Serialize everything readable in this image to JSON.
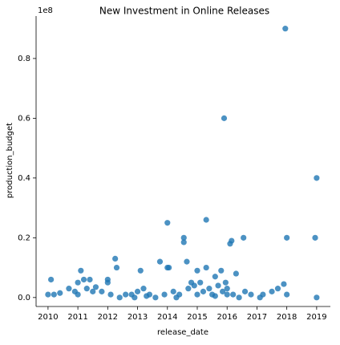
{
  "chart_data": {
    "type": "scatter",
    "title": "New Investment in Online Releases",
    "x_label": "release_date",
    "y_label": "production_budget",
    "y_offset_label": "1e8",
    "color": "#1f77b4",
    "xlim": [
      2009.6,
      2019.46
    ],
    "ylim": [
      -0.03,
      0.942
    ],
    "xticks": [
      2010,
      2011,
      2012,
      2013,
      2014,
      2015,
      2016,
      2017,
      2018,
      2019
    ],
    "yticks": [
      {
        "value": 0,
        "label": "0.0"
      },
      {
        "value": 0.2,
        "label": "0.2"
      },
      {
        "value": 0.4,
        "label": "0.4"
      },
      {
        "value": 0.6,
        "label": "0.6"
      },
      {
        "value": 0.8,
        "label": "0.8"
      }
    ],
    "x": [
      2017.95,
      2015.9,
      2019.0,
      2014.0,
      2015.3,
      2014.55,
      2014.55,
      2016.15,
      2016.1,
      2016.55,
      2018.0,
      2018.95,
      2012.25,
      2012.3,
      2013.75,
      2014.0,
      2014.05,
      2011.1,
      2013.1,
      2014.65,
      2015.3,
      2015.0,
      2015.8,
      2015.6,
      2016.3,
      2010.1,
      2011.0,
      2011.2,
      2011.4,
      2012.0,
      2012.0,
      2017.9,
      2017.7,
      2017.5,
      2017.2,
      2016.8,
      2019.0,
      2017.1,
      2018.0,
      2010.0,
      2010.2,
      2010.4,
      2010.7,
      2010.9,
      2011.0,
      2011.3,
      2011.6,
      2011.8,
      2012.1,
      2012.4,
      2012.6,
      2012.8,
      2013.0,
      2013.2,
      2013.4,
      2013.6,
      2013.9,
      2014.2,
      2014.4,
      2014.7,
      2014.9,
      2015.1,
      2015.2,
      2015.4,
      2015.5,
      2015.7,
      2015.85,
      2016.0,
      2016.2,
      2016.4,
      2016.6,
      2013.3,
      2014.3,
      2015.0,
      2015.6,
      2016.0,
      2012.9,
      2011.5,
      2014.8,
      2015.95
    ],
    "values": [
      0.9,
      0.6,
      0.4,
      0.25,
      0.26,
      0.2,
      0.185,
      0.19,
      0.18,
      0.2,
      0.2,
      0.2,
      0.13,
      0.1,
      0.12,
      0.1,
      0.1,
      0.09,
      0.09,
      0.12,
      0.1,
      0.09,
      0.09,
      0.07,
      0.08,
      0.06,
      0.05,
      0.06,
      0.06,
      0.06,
      0.05,
      0.045,
      0.03,
      0.02,
      0.01,
      0.01,
      0.0,
      0.0,
      0.01,
      0.01,
      0.01,
      0.015,
      0.03,
      0.02,
      0.01,
      0.03,
      0.035,
      0.02,
      0.01,
      0.0,
      0.01,
      0.01,
      0.02,
      0.03,
      0.01,
      0.0,
      0.01,
      0.02,
      0.01,
      0.03,
      0.04,
      0.05,
      0.02,
      0.03,
      0.01,
      0.04,
      0.02,
      0.03,
      0.01,
      0.0,
      0.02,
      0.005,
      0.0,
      0.01,
      0.005,
      0.01,
      0.0,
      0.02,
      0.05,
      0.05
    ]
  }
}
